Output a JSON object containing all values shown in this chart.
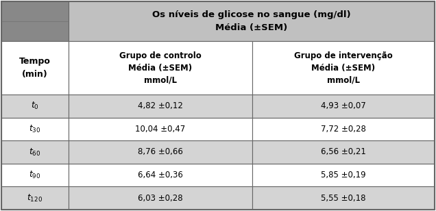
{
  "title_line1": "Os níveis de glicose no sangue (mg/dl)",
  "title_line2": "Média (±SEM)",
  "col1_header": "Grupo de controlo\nMédia (±SEM)\nmmol/L",
  "col2_header": "Grupo de intervenção\nMédia (±SEM)\nmmol/L",
  "row_header": "Tempo\n(min)",
  "time_subs": [
    "0",
    "30",
    "60",
    "90",
    "120"
  ],
  "col1_values": [
    "4,82 ±0,12",
    "10,04 ±0,47",
    "8,76 ±0,66",
    "6,64 ±0,36",
    "6,03 ±0,28"
  ],
  "col2_values": [
    "4,93 ±0,07",
    "7,72 ±0,28",
    "6,56 ±0,21",
    "5,85 ±0,19",
    "5,55 ±0,18"
  ],
  "header_bg": "#c0c0c0",
  "top_left_dark": "#888888",
  "top_left_light": "#a0a0a0",
  "subheader_bg": "#ffffff",
  "row_bg_odd": "#d4d4d4",
  "row_bg_even": "#ffffff",
  "border_color": "#666666",
  "text_color": "#000000",
  "font_size": 8.5,
  "header_font_size": 9.5,
  "subheader_font_size": 8.5
}
